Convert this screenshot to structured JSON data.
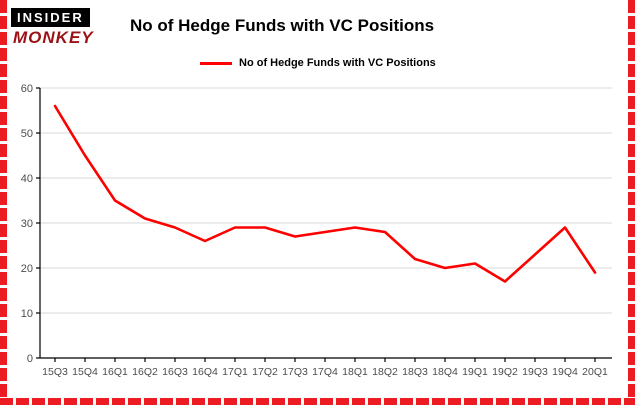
{
  "logo": {
    "insider": "INSIDER",
    "monkey": "MONKEY"
  },
  "title": "No of Hedge Funds with VC Positions",
  "legend": {
    "label": "No of Hedge Funds with VC Positions"
  },
  "colors": {
    "line": "#fe0000",
    "page_border": "#ec1c23",
    "grid": "#d9d9d9",
    "axis": "#000000",
    "logo_monkey": "#9b1216"
  },
  "chart_data": {
    "type": "line",
    "title": "No of Hedge Funds with VC Positions",
    "series_name": "No of Hedge Funds with VC Positions",
    "categories": [
      "15Q3",
      "15Q4",
      "16Q1",
      "16Q2",
      "16Q3",
      "16Q4",
      "17Q1",
      "17Q2",
      "17Q3",
      "17Q4",
      "18Q1",
      "18Q2",
      "18Q3",
      "18Q4",
      "19Q1",
      "19Q2",
      "19Q3",
      "19Q4",
      "20Q1"
    ],
    "values": [
      56,
      45,
      35,
      31,
      29,
      26,
      29,
      29,
      27,
      28,
      29,
      28,
      22,
      20,
      21,
      17,
      23,
      29,
      19
    ],
    "xlabel": "",
    "ylabel": "",
    "ylim": [
      0,
      60
    ],
    "yticks": [
      0,
      10,
      20,
      30,
      40,
      50,
      60
    ],
    "grid": true,
    "legend_position": "top",
    "line_color": "#fe0000"
  }
}
